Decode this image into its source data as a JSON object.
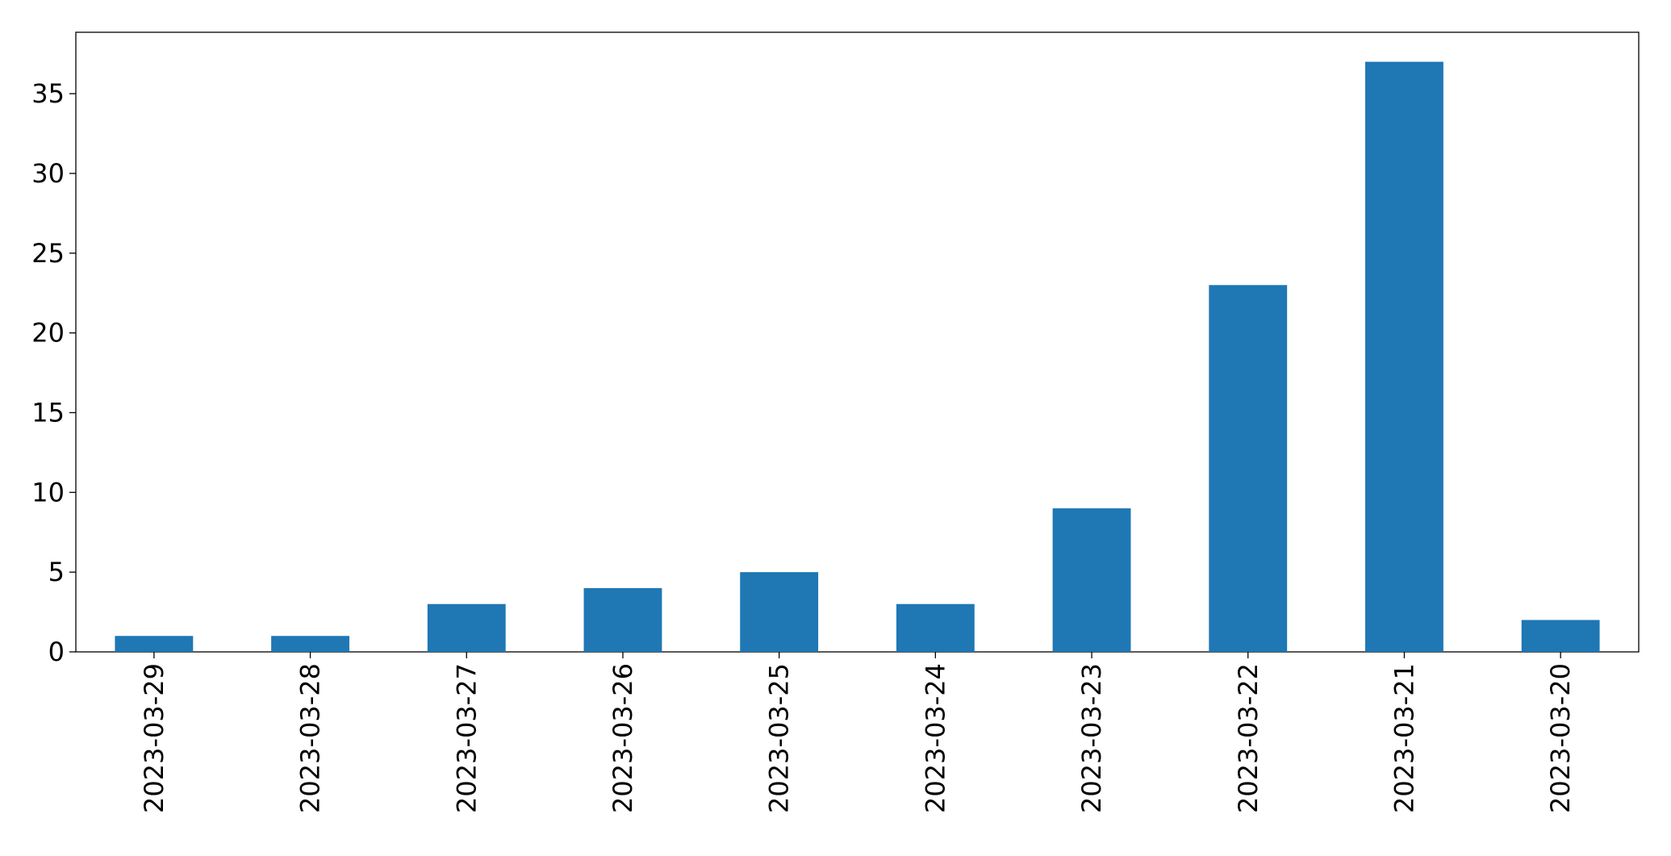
{
  "chart_data": {
    "type": "bar",
    "categories": [
      "2023-03-29",
      "2023-03-28",
      "2023-03-27",
      "2023-03-26",
      "2023-03-25",
      "2023-03-24",
      "2023-03-23",
      "2023-03-22",
      "2023-03-21",
      "2023-03-20"
    ],
    "values": [
      1,
      1,
      3,
      4,
      5,
      3,
      9,
      23,
      37,
      2
    ],
    "color": "#1f77b4",
    "ylim": [
      0,
      38.85
    ],
    "yticks": [
      0,
      5,
      10,
      15,
      20,
      25,
      30,
      35
    ],
    "grid": false
  }
}
